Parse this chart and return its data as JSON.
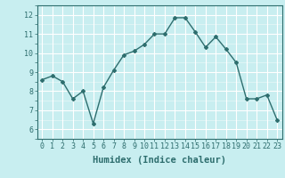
{
  "x": [
    0,
    1,
    2,
    3,
    4,
    5,
    6,
    7,
    8,
    9,
    10,
    11,
    12,
    13,
    14,
    15,
    16,
    17,
    18,
    19,
    20,
    21,
    22,
    23
  ],
  "y": [
    8.6,
    8.8,
    8.5,
    7.6,
    8.0,
    6.3,
    8.2,
    9.1,
    9.9,
    10.1,
    10.45,
    11.0,
    11.0,
    11.85,
    11.85,
    11.1,
    10.3,
    10.85,
    10.2,
    9.5,
    7.6,
    7.6,
    7.8,
    6.5
  ],
  "line_color": "#2e6e6e",
  "marker": "D",
  "marker_size": 2,
  "line_width": 1.0,
  "background_color": "#c8eef0",
  "grid_color": "#ffffff",
  "grid_minor_color": "#ddf4f5",
  "xlabel": "Humidex (Indice chaleur)",
  "xlabel_fontsize": 7.5,
  "tick_fontsize": 6,
  "xlim": [
    -0.5,
    23.5
  ],
  "ylim": [
    5.5,
    12.5
  ],
  "yticks": [
    6,
    7,
    8,
    9,
    10,
    11,
    12
  ],
  "xticks": [
    0,
    1,
    2,
    3,
    4,
    5,
    6,
    7,
    8,
    9,
    10,
    11,
    12,
    13,
    14,
    15,
    16,
    17,
    18,
    19,
    20,
    21,
    22,
    23
  ]
}
